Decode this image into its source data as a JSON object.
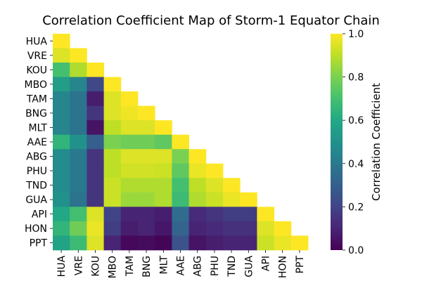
{
  "chart_data": {
    "type": "heatmap",
    "title": "Correlation Coefficient Map of Storm-1 Equator Chain",
    "xlabel": "",
    "ylabel": "",
    "colorbar_label": "Correlation Coefficient",
    "colormap": "viridis",
    "vmin": 0.0,
    "vmax": 1.0,
    "colorbar_ticks": [
      "0.0",
      "0.2",
      "0.4",
      "0.6",
      "0.8",
      "1.0"
    ],
    "mask": "upper-triangle",
    "labels": [
      "HUA",
      "VRE",
      "KOU",
      "MBO",
      "TAM",
      "BNG",
      "MLT",
      "AAE",
      "ABG",
      "PHU",
      "TND",
      "GUA",
      "API",
      "HON",
      "PPT"
    ],
    "values": [
      [
        1.0
      ],
      [
        0.95,
        1.0
      ],
      [
        0.7,
        0.88,
        1.0
      ],
      [
        0.55,
        0.45,
        0.22,
        1.0
      ],
      [
        0.45,
        0.38,
        0.08,
        0.95,
        1.0
      ],
      [
        0.45,
        0.38,
        0.15,
        0.95,
        0.98,
        1.0
      ],
      [
        0.45,
        0.38,
        0.05,
        0.9,
        0.95,
        0.95,
        1.0
      ],
      [
        0.65,
        0.5,
        0.3,
        0.8,
        0.78,
        0.78,
        0.75,
        1.0
      ],
      [
        0.48,
        0.4,
        0.15,
        0.9,
        0.95,
        0.95,
        0.95,
        0.8,
        1.0
      ],
      [
        0.48,
        0.4,
        0.15,
        0.9,
        0.93,
        0.93,
        0.92,
        0.75,
        0.97,
        1.0
      ],
      [
        0.48,
        0.4,
        0.15,
        0.92,
        0.88,
        0.88,
        0.88,
        0.7,
        0.9,
        0.95,
        1.0
      ],
      [
        0.5,
        0.38,
        0.15,
        0.92,
        0.85,
        0.85,
        0.88,
        0.68,
        0.88,
        0.92,
        0.97,
        1.0
      ],
      [
        0.6,
        0.7,
        0.95,
        0.2,
        0.1,
        0.1,
        0.08,
        0.35,
        0.12,
        0.15,
        0.18,
        0.18,
        1.0
      ],
      [
        0.65,
        0.78,
        0.97,
        0.18,
        0.08,
        0.1,
        0.06,
        0.32,
        0.1,
        0.12,
        0.14,
        0.14,
        0.95,
        1.0
      ],
      [
        0.58,
        0.68,
        0.95,
        0.1,
        0.02,
        0.03,
        0.01,
        0.25,
        0.05,
        0.08,
        0.1,
        0.1,
        0.92,
        0.97,
        1.0
      ]
    ]
  }
}
